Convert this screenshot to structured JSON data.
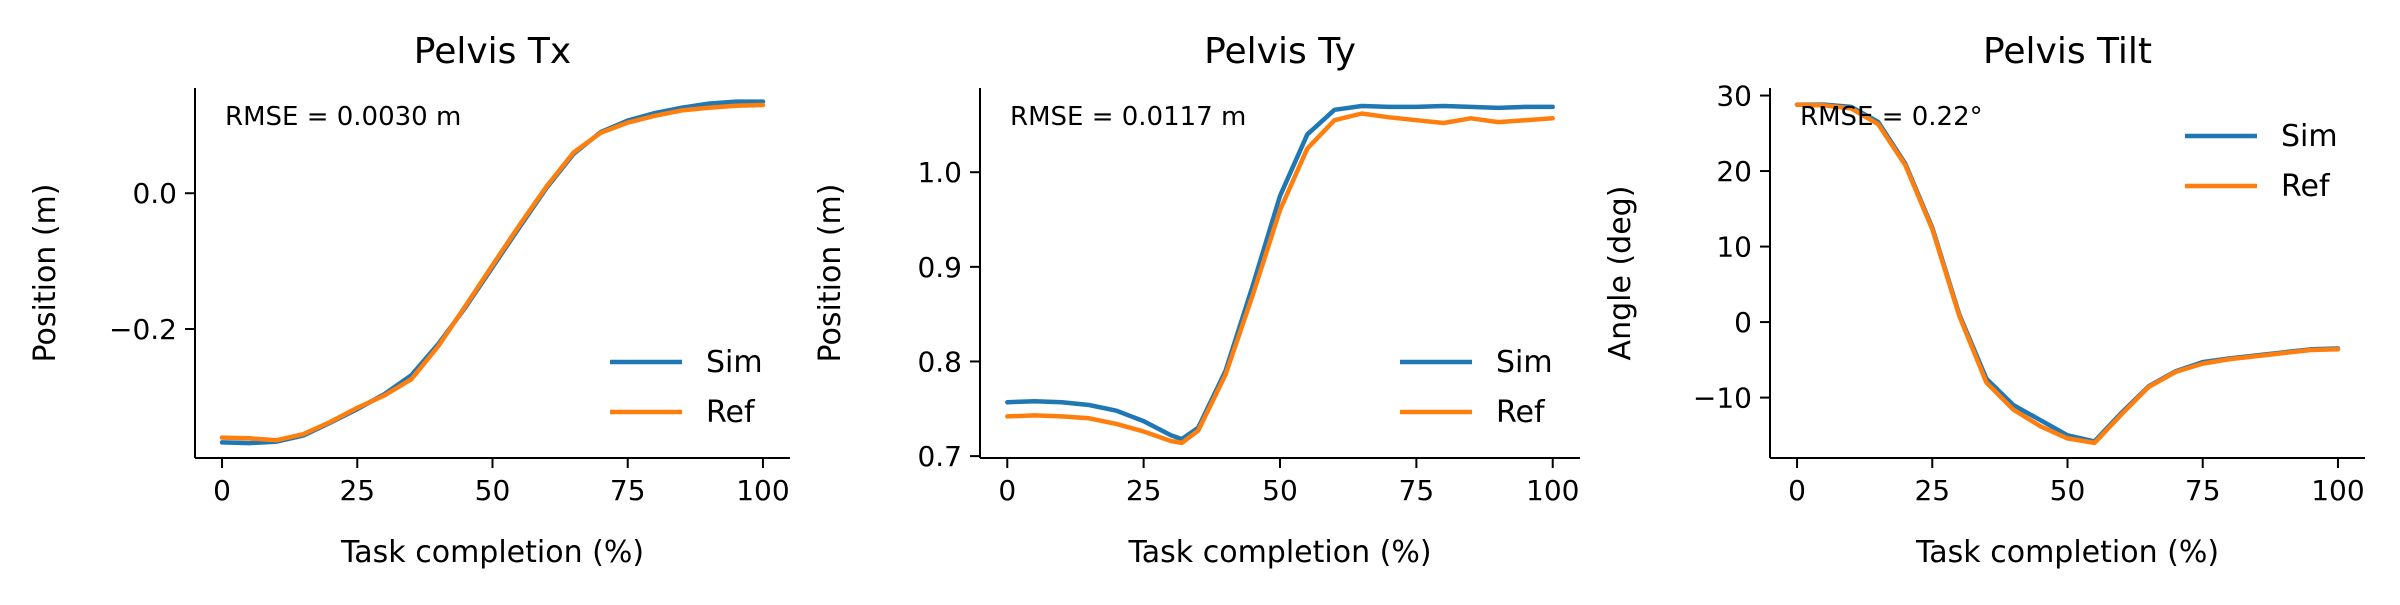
{
  "colors": {
    "sim": "#1f77b4",
    "ref": "#ff7f0e",
    "axis": "#000000"
  },
  "chart_data": [
    {
      "type": "line",
      "title": "Pelvis Tx",
      "xlabel": "Task completion (%)",
      "ylabel": "Position (m)",
      "xlim": [
        -5,
        105
      ],
      "ylim": [
        -0.39,
        0.155
      ],
      "xticks": [
        0,
        25,
        50,
        75,
        100
      ],
      "xtick_labels": [
        "0",
        "25",
        "50",
        "75",
        "100"
      ],
      "yticks": [
        -0.2,
        0.0
      ],
      "ytick_labels": [
        "−0.2",
        "0.0"
      ],
      "annotation": "RMSE = 0.0030 m",
      "legend": "lower-right",
      "x": [
        0,
        5,
        10,
        15,
        20,
        25,
        30,
        35,
        40,
        45,
        50,
        55,
        60,
        65,
        70,
        75,
        80,
        85,
        90,
        95,
        100
      ],
      "series": [
        {
          "name": "Sim",
          "values": [
            -0.367,
            -0.368,
            -0.366,
            -0.357,
            -0.338,
            -0.318,
            -0.296,
            -0.268,
            -0.222,
            -0.168,
            -0.109,
            -0.05,
            0.008,
            0.058,
            0.09,
            0.107,
            0.118,
            0.126,
            0.132,
            0.135,
            0.135
          ]
        },
        {
          "name": "Ref",
          "values": [
            -0.36,
            -0.361,
            -0.364,
            -0.355,
            -0.337,
            -0.316,
            -0.298,
            -0.274,
            -0.225,
            -0.166,
            -0.106,
            -0.047,
            0.01,
            0.06,
            0.089,
            0.104,
            0.114,
            0.122,
            0.126,
            0.129,
            0.13
          ]
        }
      ]
    },
    {
      "type": "line",
      "title": "Pelvis Ty",
      "xlabel": "Task completion (%)",
      "ylabel": "Position (m)",
      "xlim": [
        -5,
        105
      ],
      "ylim": [
        0.698,
        1.089
      ],
      "xticks": [
        0,
        25,
        50,
        75,
        100
      ],
      "xtick_labels": [
        "0",
        "25",
        "50",
        "75",
        "100"
      ],
      "yticks": [
        0.7,
        0.8,
        0.9,
        1.0
      ],
      "ytick_labels": [
        "0.7",
        "0.8",
        "0.9",
        "1.0"
      ],
      "annotation": "RMSE = 0.0117 m",
      "legend": "lower-right",
      "x": [
        0,
        5,
        10,
        15,
        20,
        25,
        30,
        32,
        35,
        40,
        45,
        50,
        55,
        60,
        65,
        70,
        75,
        80,
        85,
        90,
        95,
        100
      ],
      "series": [
        {
          "name": "Sim",
          "values": [
            0.757,
            0.758,
            0.757,
            0.754,
            0.748,
            0.737,
            0.722,
            0.718,
            0.73,
            0.79,
            0.88,
            0.975,
            1.04,
            1.066,
            1.07,
            1.069,
            1.069,
            1.07,
            1.069,
            1.068,
            1.069,
            1.069
          ]
        },
        {
          "name": "Ref",
          "values": [
            0.742,
            0.743,
            0.742,
            0.74,
            0.734,
            0.726,
            0.716,
            0.714,
            0.727,
            0.786,
            0.87,
            0.96,
            1.025,
            1.055,
            1.062,
            1.058,
            1.055,
            1.052,
            1.057,
            1.053,
            1.055,
            1.057
          ]
        }
      ]
    },
    {
      "type": "line",
      "title": "Pelvis Tilt",
      "xlabel": "Task completion (%)",
      "ylabel": "Angle (deg)",
      "xlim": [
        -5,
        105
      ],
      "ylim": [
        -18,
        31
      ],
      "xticks": [
        0,
        25,
        50,
        75,
        100
      ],
      "xtick_labels": [
        "0",
        "25",
        "50",
        "75",
        "100"
      ],
      "yticks": [
        -10,
        0,
        10,
        20,
        30
      ],
      "ytick_labels": [
        "−10",
        "0",
        "10",
        "20",
        "30"
      ],
      "annotation": "RMSE = 0.22°",
      "legend": "upper-right",
      "x": [
        0,
        5,
        10,
        15,
        20,
        25,
        30,
        35,
        40,
        45,
        50,
        55,
        60,
        65,
        70,
        75,
        80,
        85,
        90,
        95,
        100
      ],
      "series": [
        {
          "name": "Sim",
          "values": [
            28.8,
            28.8,
            28.5,
            26.5,
            21.0,
            12.5,
            1.0,
            -7.5,
            -11.0,
            -13.0,
            -15.0,
            -15.8,
            -12.0,
            -8.5,
            -6.5,
            -5.3,
            -4.8,
            -4.4,
            -4.0,
            -3.6,
            -3.5
          ]
        },
        {
          "name": "Ref",
          "values": [
            28.8,
            28.7,
            28.3,
            26.2,
            20.8,
            12.3,
            0.8,
            -8.0,
            -11.6,
            -13.8,
            -15.4,
            -16.0,
            -12.2,
            -8.6,
            -6.6,
            -5.5,
            -4.9,
            -4.5,
            -4.1,
            -3.7,
            -3.6
          ]
        }
      ]
    }
  ]
}
